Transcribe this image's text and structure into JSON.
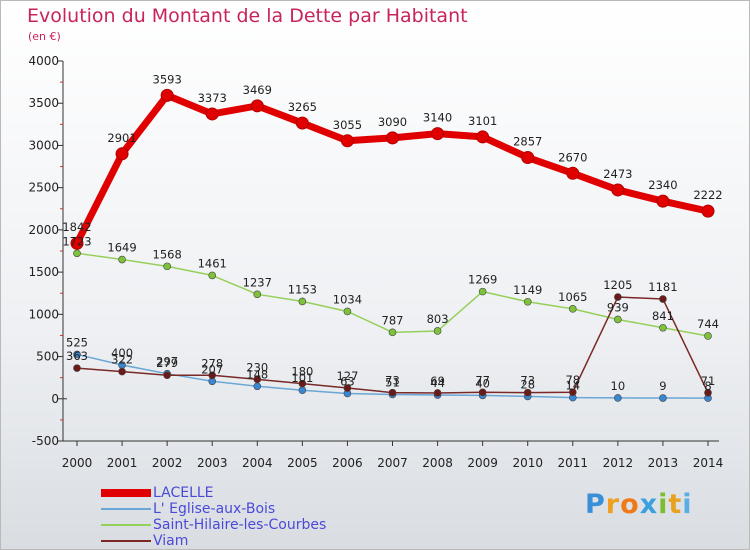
{
  "title": "Evolution du Montant de la Dette par Habitant",
  "unit": "(en €)",
  "logo": {
    "text": "Proxiti",
    "letters": [
      {
        "ch": "P",
        "color": "#3a8fd6"
      },
      {
        "ch": "r",
        "color": "#f0a020"
      },
      {
        "ch": "o",
        "color": "#ef7a1a"
      },
      {
        "ch": "x",
        "color": "#3aa0e0"
      },
      {
        "ch": "i",
        "color": "#7bbf30"
      },
      {
        "ch": "t",
        "color": "#e8a21e"
      },
      {
        "ch": "i",
        "color": "#5aaee6"
      }
    ]
  },
  "chart_data": {
    "type": "line",
    "x": [
      "2000",
      "2001",
      "2002",
      "2003",
      "2004",
      "2005",
      "2006",
      "2007",
      "2008",
      "2009",
      "2010",
      "2011",
      "2012",
      "2013",
      "2014"
    ],
    "ylim": [
      -500,
      4000
    ],
    "yticks": [
      "-500",
      "0",
      "500",
      "1000",
      "1500",
      "2000",
      "2500",
      "3000",
      "3500",
      "4000"
    ],
    "ytick_values": [
      -500,
      0,
      500,
      1000,
      1500,
      2000,
      2500,
      3000,
      3500,
      4000
    ],
    "grid": false,
    "legend_position": "bottom-left",
    "series": [
      {
        "name": "LACELLE",
        "color": "#e00000",
        "marker": "#e00000",
        "emphasis": true,
        "values": [
          1842,
          2901,
          3593,
          3373,
          3469,
          3265,
          3055,
          3090,
          3140,
          3101,
          2857,
          2670,
          2473,
          2340,
          2222
        ],
        "labels": [
          "1842",
          "2901",
          "3593",
          "3373",
          "3469",
          "3265",
          "3055",
          "3090",
          "3140",
          "3101",
          "2857",
          "2670",
          "2473",
          "2340",
          "2222"
        ]
      },
      {
        "name": "L' Eglise-aux-Bois",
        "color": "#6aa6d6",
        "marker": "#3a86d0",
        "emphasis": false,
        "values": [
          525,
          400,
          297,
          207,
          148,
          101,
          63,
          51,
          44,
          40,
          28,
          14,
          10,
          9,
          8
        ],
        "labels": [
          "525",
          "400",
          "297",
          "207",
          "148",
          "101",
          "63",
          "51",
          "44",
          "40",
          "28",
          "14",
          "10",
          "9",
          "8"
        ]
      },
      {
        "name": "Saint-Hilaire-les-Courbes",
        "color": "#95d05a",
        "marker": "#7ec23c",
        "emphasis": false,
        "values": [
          1723,
          1649,
          1568,
          1461,
          1237,
          1153,
          1034,
          787,
          803,
          1269,
          1149,
          1065,
          939,
          841,
          744
        ],
        "labels": [
          "1723",
          "1649",
          "1568",
          "1461",
          "1237",
          "1153",
          "1034",
          "787",
          "803",
          "1269",
          "1149",
          "1065",
          "939",
          "841",
          "744"
        ]
      },
      {
        "name": "Viam",
        "color": "#7a2828",
        "marker": "#6b1a1a",
        "emphasis": false,
        "values": [
          363,
          322,
          279,
          278,
          230,
          180,
          127,
          73,
          69,
          77,
          73,
          78,
          1205,
          1181,
          71
        ],
        "labels": [
          "363",
          "322",
          "279",
          "278",
          "230",
          "180",
          "127",
          "73",
          "69",
          "77",
          "73",
          "78",
          "1205",
          "1181",
          "71"
        ]
      }
    ]
  }
}
